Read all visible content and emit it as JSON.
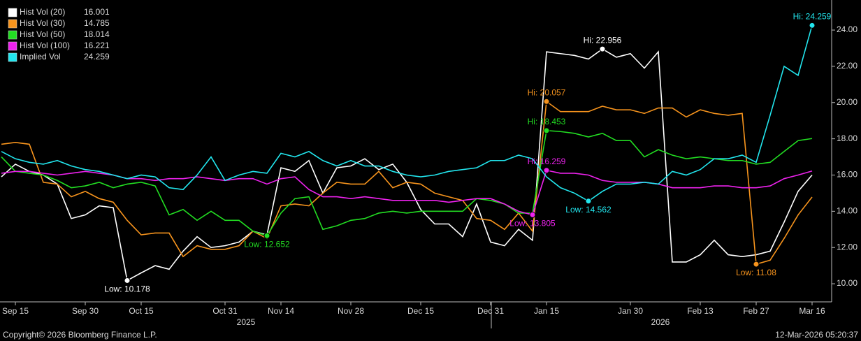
{
  "chart_data": {
    "type": "line",
    "categories": [
      null,
      "Sep 15",
      null,
      null,
      null,
      null,
      "Sep 30",
      null,
      null,
      null,
      "Oct 15",
      null,
      null,
      null,
      null,
      null,
      "Oct 31",
      null,
      null,
      null,
      "Nov 14",
      null,
      null,
      null,
      null,
      "Nov 28",
      null,
      null,
      null,
      null,
      "Dec 15",
      null,
      null,
      null,
      null,
      "Dec 31",
      null,
      null,
      null,
      "Jan 15",
      null,
      null,
      null,
      null,
      null,
      "Jan 30",
      null,
      null,
      null,
      null,
      "Feb 13",
      null,
      null,
      null,
      "Feb 27",
      null,
      null,
      null,
      "Mar 16"
    ],
    "series": [
      {
        "name": "Hist Vol (20)",
        "color": "#ffffff",
        "hi_label": "Hi: 22.956",
        "lo_label": "Low: 10.178",
        "values": [
          15.9,
          16.6,
          16.2,
          16.0,
          15.5,
          13.6,
          13.8,
          14.3,
          14.2,
          10.178,
          10.6,
          11.0,
          10.8,
          11.8,
          12.6,
          12.0,
          12.1,
          12.3,
          12.9,
          12.7,
          16.4,
          16.2,
          16.8,
          15.0,
          16.4,
          16.5,
          16.9,
          16.3,
          16.6,
          15.6,
          14.1,
          13.3,
          13.3,
          12.6,
          14.4,
          12.3,
          12.1,
          13.0,
          12.4,
          22.8,
          22.7,
          22.6,
          22.4,
          22.956,
          22.5,
          22.7,
          21.9,
          22.8,
          11.2,
          11.2,
          11.6,
          12.4,
          11.6,
          11.5,
          11.6,
          11.8,
          13.4,
          15.1,
          16.001
        ]
      },
      {
        "name": "Hist Vol (30)",
        "color": "#f7941d",
        "hi_label": "Hi: 20.057",
        "lo_label": "Low: 11.08",
        "values": [
          17.7,
          17.8,
          17.7,
          15.6,
          15.5,
          14.8,
          15.1,
          14.7,
          14.5,
          13.5,
          12.7,
          12.8,
          12.8,
          11.5,
          12.1,
          11.9,
          11.9,
          12.1,
          12.9,
          12.5,
          14.3,
          14.4,
          14.3,
          15.0,
          15.6,
          15.5,
          15.5,
          16.2,
          15.3,
          15.6,
          15.5,
          15.0,
          14.8,
          14.6,
          13.6,
          13.5,
          13.0,
          13.9,
          12.9,
          20.057,
          19.5,
          19.5,
          19.5,
          19.8,
          19.6,
          19.6,
          19.4,
          19.7,
          19.7,
          19.2,
          19.6,
          19.4,
          19.3,
          19.4,
          11.08,
          11.3,
          12.5,
          13.8,
          14.785
        ]
      },
      {
        "name": "Hist Vol (50)",
        "color": "#22dd22",
        "hi_label": "Hi: 18.453",
        "lo_label": "Low: 12.652",
        "values": [
          17.0,
          16.2,
          16.1,
          16.0,
          15.7,
          15.3,
          15.4,
          15.6,
          15.3,
          15.5,
          15.6,
          15.4,
          13.8,
          14.1,
          13.5,
          14.0,
          13.5,
          13.5,
          12.9,
          12.652,
          13.9,
          14.7,
          14.8,
          13.0,
          13.2,
          13.5,
          13.6,
          13.9,
          14.0,
          13.9,
          14.0,
          14.0,
          14.0,
          14.0,
          14.7,
          14.6,
          14.4,
          13.9,
          13.9,
          18.453,
          18.4,
          18.3,
          18.1,
          18.3,
          17.9,
          17.9,
          17.0,
          17.4,
          17.1,
          16.9,
          17.0,
          16.9,
          16.8,
          16.8,
          16.6,
          16.7,
          17.3,
          17.9,
          18.014
        ]
      },
      {
        "name": "Hist Vol (100)",
        "color": "#ee22ee",
        "hi_label": "Hi: 16.259",
        "lo_label": "Low: 13.805",
        "values": [
          16.1,
          16.2,
          16.2,
          16.1,
          16.0,
          16.1,
          16.2,
          16.1,
          16.0,
          15.8,
          15.8,
          15.7,
          15.8,
          15.8,
          15.9,
          15.8,
          15.7,
          15.8,
          15.8,
          15.5,
          15.8,
          15.9,
          15.2,
          14.8,
          14.8,
          14.7,
          14.8,
          14.7,
          14.6,
          14.6,
          14.6,
          14.6,
          14.5,
          14.6,
          14.7,
          14.7,
          14.4,
          14.0,
          13.805,
          16.259,
          16.1,
          16.1,
          16.0,
          15.7,
          15.6,
          15.6,
          15.6,
          15.5,
          15.3,
          15.3,
          15.3,
          15.4,
          15.4,
          15.3,
          15.3,
          15.4,
          15.8,
          16.0,
          16.221
        ]
      },
      {
        "name": "Implied Vol",
        "color": "#22e6ee",
        "hi_label": "Hi: 24.259",
        "lo_label": "Low: 14.562",
        "values": [
          17.3,
          16.9,
          16.7,
          16.6,
          16.8,
          16.5,
          16.3,
          16.2,
          16.0,
          15.8,
          16.0,
          15.9,
          15.3,
          15.2,
          16.0,
          17.0,
          15.7,
          16.0,
          16.2,
          16.1,
          17.2,
          17.0,
          17.3,
          16.8,
          16.5,
          16.8,
          16.5,
          16.5,
          16.2,
          16.0,
          15.9,
          16.0,
          16.2,
          16.3,
          16.4,
          16.8,
          16.8,
          17.1,
          16.9,
          15.9,
          15.3,
          15.0,
          14.562,
          15.1,
          15.5,
          15.5,
          15.6,
          15.5,
          16.2,
          16.0,
          16.3,
          16.9,
          16.9,
          17.1,
          16.7,
          19.3,
          22.0,
          21.5,
          24.259
        ]
      }
    ],
    "ylim": [
      9,
      25.66
    ],
    "yticks": [
      {
        "value": 10,
        "label": "10.00"
      },
      {
        "value": 12,
        "label": "12.00"
      },
      {
        "value": 14,
        "label": "14.00"
      },
      {
        "value": 16,
        "label": "16.00"
      },
      {
        "value": 18,
        "label": "18.00"
      },
      {
        "value": 20,
        "label": "20.00"
      },
      {
        "value": 22,
        "label": "22.00"
      },
      {
        "value": 24,
        "label": "24.00"
      }
    ],
    "year_labels": [
      "2025",
      "2026"
    ],
    "grid": false,
    "legend": "top-left",
    "copyright": "Copyright© 2026 Bloomberg Finance L.P.",
    "timestamp": "12-Mar-2026 05:20:37"
  }
}
